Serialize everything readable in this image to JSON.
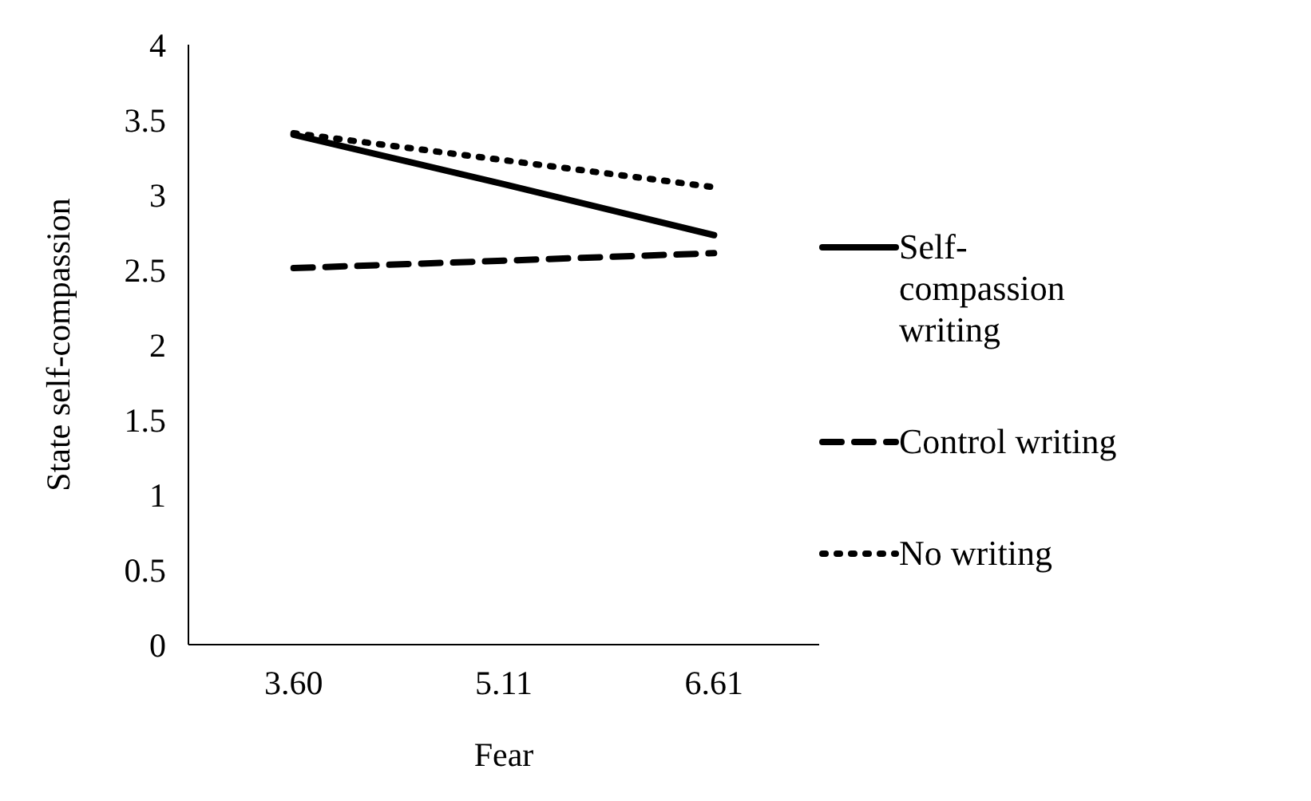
{
  "chart_data": {
    "type": "line",
    "xlabel": "Fear",
    "ylabel": "State self-compassion",
    "categories": [
      "3.60",
      "5.11",
      "6.61"
    ],
    "series": [
      {
        "name": "Self-compassion writing",
        "color": "#000000",
        "line_style": "solid",
        "values": [
          3.4,
          3.07,
          2.73
        ]
      },
      {
        "name": "Control writing",
        "color": "#000000",
        "line_style": "dashed",
        "values": [
          2.51,
          2.56,
          2.61
        ]
      },
      {
        "name": "No writing",
        "color": "#000000",
        "line_style": "dotted",
        "values": [
          3.41,
          3.23,
          3.05
        ]
      }
    ],
    "ylim": [
      0,
      4
    ],
    "yticks": [
      0,
      0.5,
      1,
      1.5,
      2,
      2.5,
      3,
      3.5,
      4
    ],
    "grid": false,
    "legend": "right",
    "marker": "none"
  }
}
